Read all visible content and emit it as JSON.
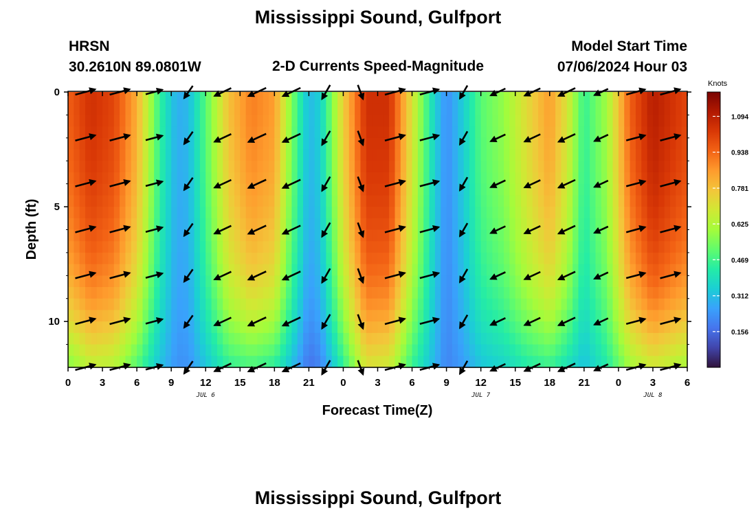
{
  "header": {
    "title": "Mississippi Sound, Gulfport",
    "station": "HRSN",
    "coords": "30.2610N  89.0801W",
    "subtitle": "2-D Currents Speed-Magnitude",
    "model_label": "Model Start Time",
    "model_time": "07/06/2024 Hour 03"
  },
  "footer": {
    "title": "Mississippi Sound, Gulfport"
  },
  "chart_data": {
    "type": "heatmap",
    "xlabel": "Forecast Time(Z)",
    "ylabel": "Depth (ft)",
    "x_ticks": [
      "0",
      "3",
      "6",
      "9",
      "12",
      "15",
      "18",
      "21",
      "0",
      "3",
      "6",
      "9",
      "12",
      "15",
      "18",
      "21",
      "0",
      "3",
      "6"
    ],
    "x_hours": [
      0,
      3,
      6,
      9,
      12,
      15,
      18,
      21,
      24,
      27,
      30,
      33,
      36,
      39,
      42,
      45,
      48,
      51,
      54
    ],
    "date_labels": [
      {
        "label": "JUL 6",
        "hour": 12
      },
      {
        "label": "JUL 7",
        "hour": 36
      },
      {
        "label": "JUL 8",
        "hour": 51
      }
    ],
    "xlim": [
      0,
      54
    ],
    "y_ticks": [
      0,
      5,
      10
    ],
    "ylim": [
      0,
      12
    ],
    "y_inverted": true,
    "colorbar": {
      "title": "Knots",
      "ticks": [
        1.094,
        0.938,
        0.781,
        0.625,
        0.469,
        0.312,
        0.156
      ],
      "range": [
        0.0,
        1.2
      ],
      "colors": [
        "#30123b",
        "#4145ab",
        "#4675ed",
        "#39a2fc",
        "#1bcfd4",
        "#24eca6",
        "#61fc6c",
        "#a4fc3b",
        "#d1e834",
        "#f3c63a",
        "#fe9b2d",
        "#f36315",
        "#d93806",
        "#b11901",
        "#7a0402"
      ]
    },
    "speed_profile": {
      "hours": [
        0,
        2,
        4,
        6,
        8,
        9.5,
        10.5,
        12,
        14,
        16,
        18,
        19.5,
        21,
        22,
        24,
        26,
        28,
        30,
        32,
        33,
        34,
        36,
        38,
        40,
        42,
        43.5,
        45,
        47,
        49,
        51,
        54
      ],
      "surface": [
        0.95,
        1.05,
        1.0,
        0.82,
        0.45,
        0.28,
        0.3,
        0.5,
        0.78,
        0.9,
        0.85,
        0.55,
        0.3,
        0.35,
        0.75,
        1.05,
        1.05,
        0.7,
        0.35,
        0.22,
        0.3,
        0.5,
        0.58,
        0.72,
        0.85,
        0.7,
        0.45,
        0.6,
        0.95,
        1.1,
        1.0
      ],
      "bottom": [
        0.5,
        0.6,
        0.58,
        0.45,
        0.3,
        0.22,
        0.22,
        0.3,
        0.4,
        0.42,
        0.38,
        0.28,
        0.15,
        0.18,
        0.4,
        0.65,
        0.62,
        0.42,
        0.28,
        0.2,
        0.22,
        0.3,
        0.33,
        0.38,
        0.4,
        0.35,
        0.3,
        0.4,
        0.55,
        0.62,
        0.55
      ],
      "depth_ft": [
        0,
        1,
        2,
        3,
        4,
        5,
        6,
        7,
        8,
        9,
        10,
        11,
        12
      ],
      "depth_factor": [
        1.0,
        1.0,
        0.98,
        0.96,
        0.93,
        0.89,
        0.84,
        0.78,
        0.7,
        0.6,
        0.47,
        0.3,
        0.12
      ]
    },
    "vectors": {
      "depths_ft": [
        0,
        2,
        4,
        6,
        8,
        10,
        12
      ],
      "hours": [
        1.5,
        4.5,
        7.5,
        10.5,
        13.5,
        16.5,
        19.5,
        22.5,
        25.5,
        28.5,
        31.5,
        34.5,
        37.5,
        40.5,
        43.5,
        46.5,
        49.5,
        52.5
      ],
      "direction_deg": [
        15,
        15,
        15,
        235,
        205,
        205,
        205,
        240,
        290,
        15,
        15,
        240,
        205,
        205,
        205,
        205,
        15,
        15
      ],
      "magnitude": [
        1.0,
        1.0,
        0.7,
        0.5,
        0.8,
        0.9,
        0.9,
        0.6,
        0.5,
        1.0,
        0.9,
        0.5,
        0.6,
        0.7,
        0.8,
        0.5,
        0.9,
        1.0
      ]
    }
  }
}
